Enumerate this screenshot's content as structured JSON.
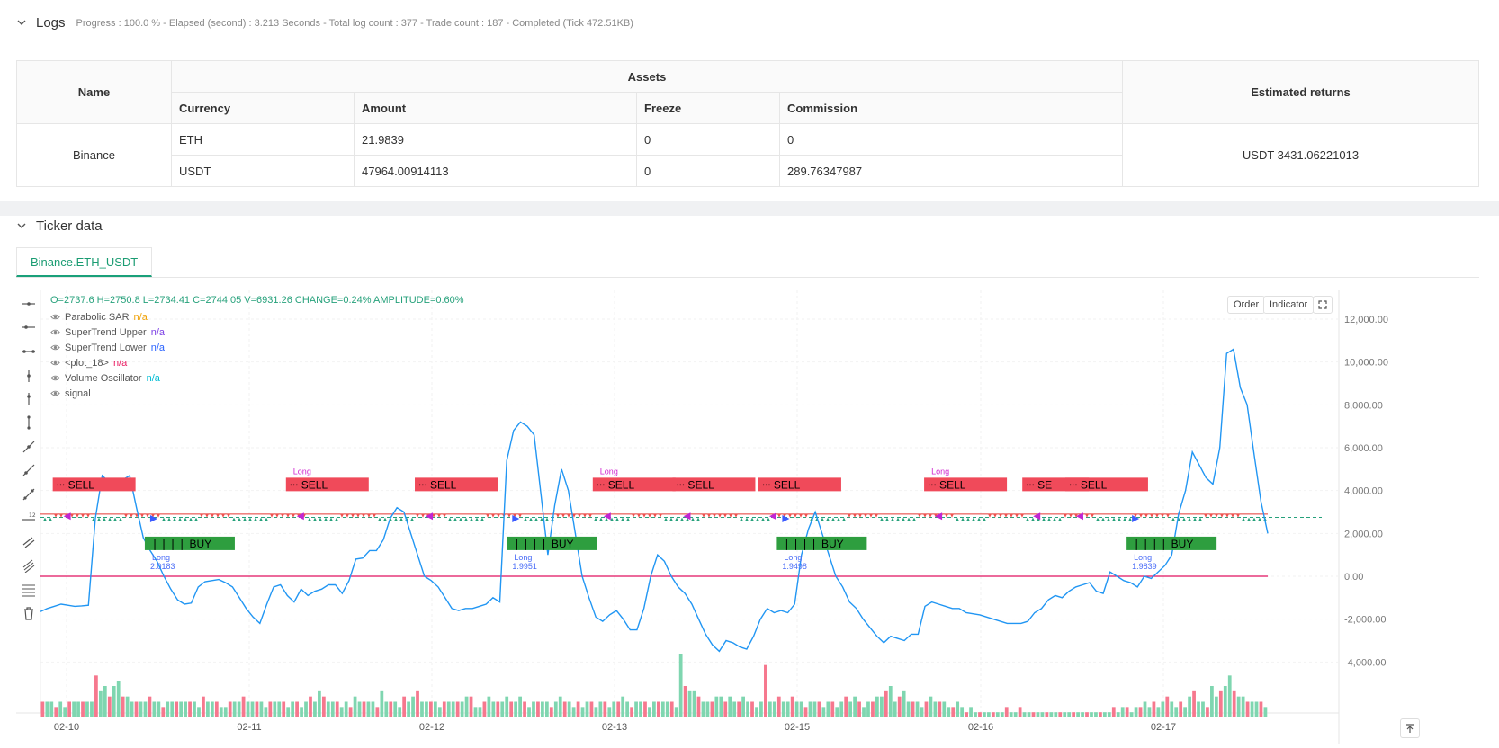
{
  "logs": {
    "title": "Logs",
    "progress": "Progress : 100.0 % - Elapsed (second) : 3.213  Seconds - Total log count : 377 - Trade count : 187 - Completed (Tick 472.51KB)"
  },
  "assets_table": {
    "h_name": "Name",
    "h_assets": "Assets",
    "h_returns": "Estimated returns",
    "h_currency": "Currency",
    "h_amount": "Amount",
    "h_freeze": "Freeze",
    "h_commission": "Commission",
    "exchange": "Binance",
    "rows": [
      {
        "currency": "ETH",
        "amount": "21.9839",
        "freeze": "0",
        "commission": "0"
      },
      {
        "currency": "USDT",
        "amount": "47964.00914113",
        "freeze": "0",
        "commission": "289.76347987"
      }
    ],
    "returns": "USDT 3431.06221013"
  },
  "ticker": {
    "title": "Ticker data",
    "tab": "Binance.ETH_USDT",
    "order_btn": "Order",
    "indicator_btn": "Indicator",
    "ohlc": "O=2737.6 H=2750.8 L=2734.41 C=2744.05 V=6931.26 CHANGE=0.24% AMPLITUDE=0.60%",
    "legend": [
      {
        "name": "Parabolic SAR",
        "val": "n/a",
        "color": "#f0a30a"
      },
      {
        "name": "SuperTrend Upper",
        "val": "n/a",
        "color": "#7b3fe4"
      },
      {
        "name": "SuperTrend Lower",
        "val": "n/a",
        "color": "#2962ff"
      },
      {
        "name": "<plot_18>",
        "val": "n/a",
        "color": "#e91e63"
      },
      {
        "name": "Volume Oscillator",
        "val": "n/a",
        "color": "#00bcd4"
      },
      {
        "name": "signal",
        "val": "",
        "color": "#555"
      }
    ]
  },
  "chart_data": {
    "type": "line",
    "y_ticks": [
      "12,000.00",
      "10,000.00",
      "8,000.00",
      "6,000.00",
      "4,000.00",
      "2,000.00",
      "0.00",
      "-2,000.00",
      "-4,000.00"
    ],
    "x_ticks": [
      "02-10",
      "02-11",
      "02-12",
      "02-13",
      "02-15",
      "02-16",
      "02-17"
    ],
    "ylim": [
      -4700,
      13000
    ],
    "series": [
      {
        "color": "#2196f3",
        "values": [
          -1650,
          -1500,
          -1400,
          -1300,
          -1350,
          -1400,
          -1380,
          -1350,
          2700,
          4700,
          4400,
          4100,
          4500,
          4700,
          3200,
          1800,
          1200,
          700,
          0,
          -600,
          -1100,
          -1300,
          -1250,
          -500,
          -250,
          -200,
          -150,
          -300,
          -500,
          -1000,
          -1500,
          -1900,
          -2200,
          -1300,
          -500,
          -400,
          -900,
          -1200,
          -600,
          -900,
          -700,
          -600,
          -400,
          -400,
          -800,
          -200,
          800,
          850,
          1200,
          1200,
          1700,
          2700,
          3200,
          3000,
          2000,
          1000,
          0,
          -200,
          -500,
          -1000,
          -1500,
          -1600,
          -1500,
          -1500,
          -1400,
          -1300,
          -1000,
          -1200,
          5400,
          6800,
          7200,
          7000,
          6600,
          3800,
          1000,
          3300,
          5000,
          4000,
          2000,
          0,
          -1000,
          -1900,
          -2100,
          -1800,
          -1600,
          -2000,
          -2500,
          -2500,
          -1500,
          0,
          1000,
          700,
          0,
          -500,
          -800,
          -1300,
          -2000,
          -2700,
          -3200,
          -3500,
          -3000,
          -3100,
          -3300,
          -3400,
          -2800,
          -2000,
          -1500,
          -1700,
          -1600,
          -1700,
          -1300,
          1000,
          2200,
          3000,
          2000,
          1000,
          0,
          -500,
          -1200,
          -1500,
          -2000,
          -2400,
          -2800,
          -3100,
          -2800,
          -2900,
          -3000,
          -2700,
          -2700,
          -1400,
          -1200,
          -1300,
          -1400,
          -1500,
          -1500,
          -1700,
          -1750,
          -1800,
          -1900,
          -2000,
          -2100,
          -2200,
          -2200,
          -2200,
          -2100,
          -1700,
          -1500,
          -1100,
          -900,
          -1000,
          -700,
          -500,
          -400,
          -300,
          -700,
          -800,
          200,
          0,
          -200,
          -300,
          -500,
          0,
          -100,
          200,
          500,
          1000,
          2900,
          4000,
          5800,
          5200,
          4600,
          4300,
          6000,
          10400,
          10600,
          8800,
          8000,
          5700,
          3500,
          2000
        ]
      }
    ],
    "volume": [
      3,
      3,
      3,
      2,
      3,
      2,
      3,
      3,
      3,
      3,
      3,
      3,
      8,
      5,
      6,
      4,
      6,
      7,
      4,
      4,
      3,
      3,
      3,
      3,
      4,
      3,
      3,
      2,
      3,
      3,
      3,
      3,
      3,
      3,
      3,
      2,
      4,
      3,
      3,
      3,
      2,
      2,
      3,
      3,
      3,
      4,
      3,
      3,
      3,
      3,
      2,
      3,
      3,
      3,
      3,
      2,
      3,
      3,
      2,
      3,
      4,
      3,
      5,
      4,
      3,
      3,
      3,
      2,
      3,
      2,
      4,
      3,
      3,
      3,
      3,
      2,
      5,
      3,
      3,
      3,
      2,
      4,
      3,
      4,
      5,
      3,
      3,
      3,
      3,
      2,
      3,
      3,
      3,
      3,
      3,
      4,
      4,
      2,
      2,
      3,
      4,
      3,
      3,
      3,
      4,
      3,
      3,
      4,
      3,
      2,
      3,
      3,
      3,
      3,
      2,
      3,
      4,
      3,
      3,
      2,
      3,
      2,
      3,
      3,
      2,
      3,
      3,
      2,
      3,
      3,
      4,
      3,
      2,
      3,
      3,
      3,
      2,
      3,
      3,
      3,
      3,
      3,
      2,
      12,
      6,
      5,
      5,
      4,
      3,
      3,
      3,
      4,
      4,
      3,
      4,
      3,
      3,
      4,
      3,
      3,
      2,
      3,
      10,
      3,
      3,
      4,
      3,
      3,
      4,
      3,
      3,
      2,
      3,
      3,
      3,
      2,
      3,
      3,
      2,
      3,
      4,
      3,
      4,
      3,
      2,
      3,
      3,
      4,
      4,
      5,
      6,
      3,
      4,
      5,
      3,
      3,
      3,
      2,
      3,
      4,
      3,
      3,
      3,
      2,
      2,
      3,
      2,
      1,
      2,
      1,
      1,
      1,
      1,
      1,
      1,
      1,
      2,
      1,
      1,
      2,
      1,
      1,
      1,
      1,
      1,
      1,
      1,
      1,
      1,
      1,
      1,
      1,
      1,
      1,
      1,
      1,
      1,
      1,
      1,
      1,
      2,
      1,
      2,
      2,
      1,
      2,
      2,
      3,
      2,
      3,
      2,
      3,
      4,
      3,
      2,
      3,
      2,
      4,
      5,
      3,
      3,
      2,
      6,
      4,
      5,
      6,
      8,
      5,
      4,
      4,
      3,
      3,
      3,
      3,
      2
    ]
  },
  "signals": [
    {
      "kind": "sell",
      "label": "SELL",
      "x": 0.01
    },
    {
      "kind": "buy",
      "label": "BUY",
      "x": 0.085,
      "note1": "Long",
      "note2": "2.0183"
    },
    {
      "kind": "sell",
      "label": "SELL",
      "x": 0.2,
      "note1": "Long"
    },
    {
      "kind": "sell",
      "label": "SELL",
      "x": 0.305
    },
    {
      "kind": "buy",
      "label": "BUY",
      "x": 0.38,
      "note1": "Long",
      "note2": "1.9951"
    },
    {
      "kind": "sell",
      "label": "SELL",
      "x": 0.45,
      "note1": "Long"
    },
    {
      "kind": "sell",
      "label": "SELL",
      "x": 0.515
    },
    {
      "kind": "sell",
      "label": "SELL",
      "x": 0.585
    },
    {
      "kind": "buy",
      "label": "BUY",
      "x": 0.6,
      "note1": "Long",
      "note2": "1.9498"
    },
    {
      "kind": "sell",
      "label": "SELL",
      "x": 0.72,
      "note1": "Long"
    },
    {
      "kind": "sell",
      "label": "SE",
      "x": 0.8
    },
    {
      "kind": "sell",
      "label": "SELL",
      "x": 0.835
    },
    {
      "kind": "buy",
      "label": "BUY",
      "x": 0.885,
      "note1": "Long",
      "note2": "1.9839"
    }
  ]
}
